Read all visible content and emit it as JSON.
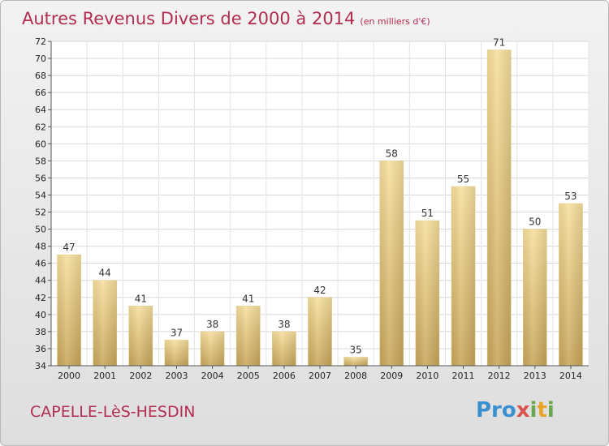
{
  "title": "Autres Revenus Divers de 2000 à 2014",
  "title_unit": "(en milliers d'€)",
  "location": "CAPELLE-LèS-HESDIN",
  "logo": {
    "text": "Proxiti",
    "colors": [
      "#3a8fd1",
      "#e9a32a",
      "#6aa84f",
      "#d9534f"
    ]
  },
  "colors": {
    "bar_light": "#f6dd9a",
    "bar_dark": "#c9a95a",
    "title": "#b32d52"
  },
  "chart_data": {
    "type": "bar",
    "title": "Autres Revenus Divers de 2000 à 2014",
    "subtitle": "(en milliers d'€)",
    "categories": [
      "2000",
      "2001",
      "2002",
      "2003",
      "2004",
      "2005",
      "2006",
      "2007",
      "2008",
      "2009",
      "2010",
      "2011",
      "2012",
      "2013",
      "2014"
    ],
    "values": [
      47,
      44,
      41,
      37,
      38,
      41,
      38,
      42,
      35,
      58,
      51,
      55,
      71,
      50,
      53
    ],
    "ylim": [
      34,
      72
    ],
    "yticks": [
      34,
      36,
      38,
      40,
      42,
      44,
      46,
      48,
      50,
      52,
      54,
      56,
      58,
      60,
      62,
      64,
      66,
      68,
      70,
      72
    ],
    "xlabel": "",
    "ylabel": "",
    "grid": true,
    "show_data_labels": true
  }
}
